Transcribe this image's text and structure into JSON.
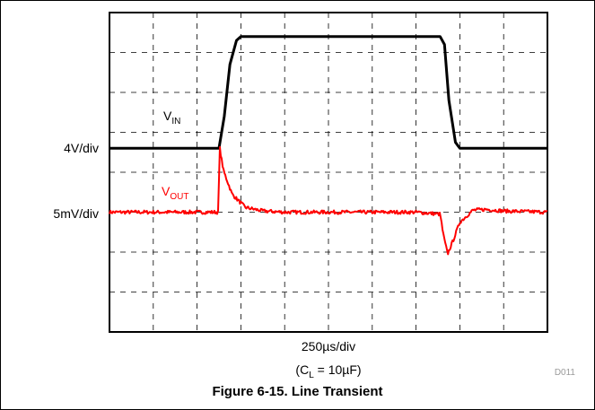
{
  "chart_data": {
    "type": "line",
    "title": "Figure 6-15. Line Transient",
    "xlabel": "250µs/div",
    "condition_text": "(C",
    "condition_sub": "L",
    "condition_rest": " = 10µF)",
    "figure_code": "D011",
    "grid": true,
    "x_divisions": 10,
    "y_divisions": 8,
    "xlim": [
      0,
      10
    ],
    "y_scale_labels": [
      {
        "text": "4V/div",
        "channel": "vin"
      },
      {
        "text": "5mV/div",
        "channel": "vout"
      }
    ],
    "series": [
      {
        "name": "VIN",
        "label_main": "V",
        "label_sub": "IN",
        "color": "#000000",
        "unit": "div",
        "x": [
          0,
          2.5,
          2.62,
          2.75,
          2.9,
          3.0,
          7.55,
          7.65,
          7.75,
          7.9,
          8.0,
          10
        ],
        "y": [
          0,
          0,
          0.8,
          2.1,
          2.7,
          2.8,
          2.8,
          2.6,
          1.2,
          0.15,
          0,
          0
        ]
      },
      {
        "name": "VOUT",
        "label_main": "V",
        "label_sub": "OUT",
        "color": "#ff0000",
        "unit": "div",
        "x": [
          0,
          2.48,
          2.52,
          2.6,
          2.8,
          3.1,
          3.5,
          4.0,
          5.0,
          6.0,
          7.0,
          7.55,
          7.62,
          7.72,
          7.85,
          8.0,
          8.3,
          8.6,
          9.0,
          10
        ],
        "y": [
          0,
          0,
          1.6,
          1.05,
          0.45,
          0.12,
          0.03,
          0.0,
          0.0,
          0.0,
          0.0,
          -0.05,
          -0.55,
          -1.05,
          -0.7,
          -0.25,
          0.05,
          0.07,
          0.03,
          0.0
        ]
      }
    ]
  }
}
